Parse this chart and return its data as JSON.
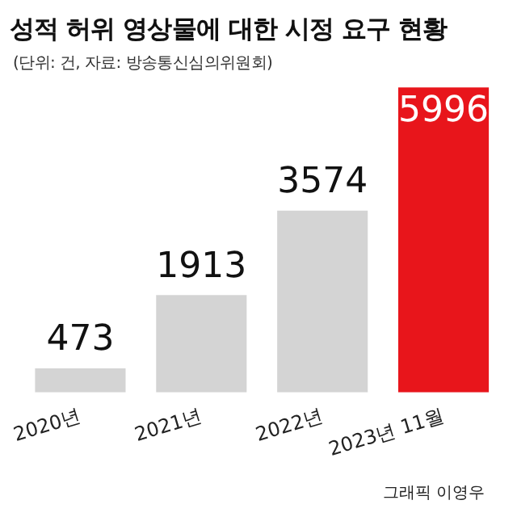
{
  "chart_data": {
    "type": "bar",
    "title": "성적 허위 영상물에 대한 시정 요구 현황",
    "subtitle": "(단위: 건, 자료: 방송통신심의위원회)",
    "categories": [
      "2020년",
      "2021년",
      "2022년",
      "2023년 11월"
    ],
    "values": [
      473,
      1913,
      3574,
      5996
    ],
    "colors": [
      "#d4d4d4",
      "#d4d4d4",
      "#d4d4d4",
      "#e8151b"
    ],
    "data_labels": true,
    "grid": false,
    "legend": false,
    "tick_labels": "x",
    "annotations": [
      "그래픽 이영우"
    ]
  }
}
